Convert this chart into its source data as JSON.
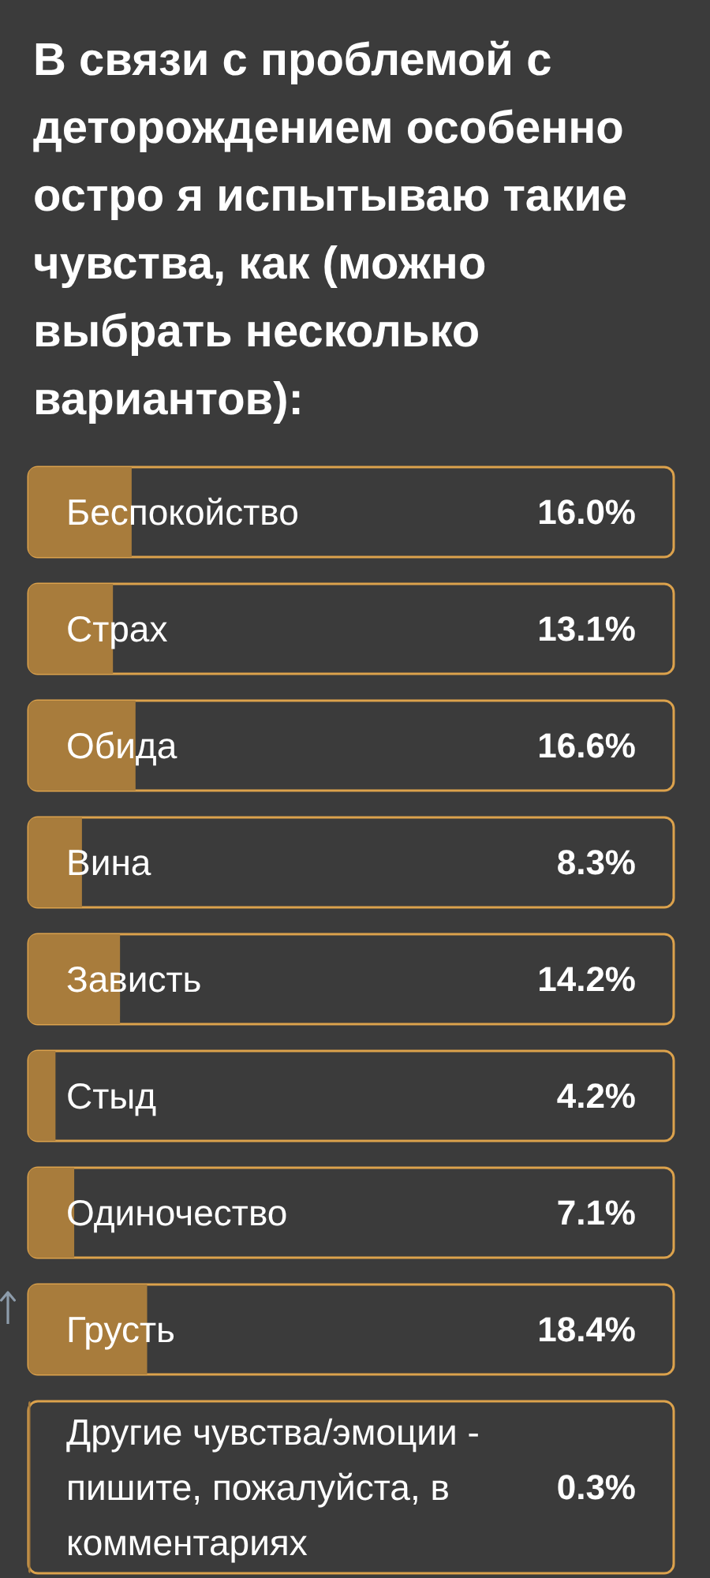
{
  "chart_data": {
    "type": "bar",
    "orientation": "horizontal",
    "title": "В связи с проблемой с деторождением особенно остро я испытываю такие чувства, как (можно выбрать несколько вариантов):",
    "categories": [
      "Беспокойство",
      "Страх",
      "Обида",
      "Вина",
      "Зависть",
      "Стыд",
      "Одиночество",
      "Грусть",
      "Другие чувства/эмоции - пишите, пожалуйста, в комментариях"
    ],
    "values": [
      16.0,
      13.1,
      16.6,
      8.3,
      14.2,
      4.2,
      7.1,
      18.4,
      0.3
    ],
    "value_labels": [
      "16.0%",
      "13.1%",
      "16.6%",
      "8.3%",
      "14.2%",
      "4.2%",
      "7.1%",
      "18.4%",
      "0.3%"
    ],
    "color": "#a87c3c",
    "xlim": [
      0,
      100
    ],
    "tick_labels": "y"
  }
}
